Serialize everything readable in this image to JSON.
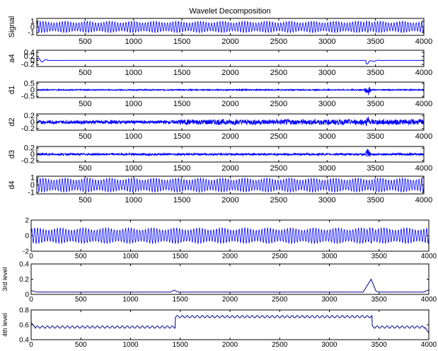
{
  "title": "Wavelet Decomposition",
  "colors": {
    "signal": "#0000ff",
    "envelope": "#00008b",
    "axis": "#000000"
  },
  "chart_data": [
    {
      "type": "line",
      "ylabel": "Signal",
      "xlim": [
        0,
        4000
      ],
      "ylim": [
        -1.5,
        1.5
      ],
      "yticks": [
        -1,
        0,
        1
      ],
      "xticks": [
        500,
        1000,
        1500,
        2000,
        2500,
        3000,
        3500,
        4000
      ],
      "series": [
        {
          "kind": "oscillation",
          "amplitude": 1.0,
          "cycles": 140,
          "transient_at": 3420
        }
      ]
    },
    {
      "type": "line",
      "ylabel": "a4",
      "xlim": [
        0,
        4000
      ],
      "ylim": [
        -0.3,
        0.5
      ],
      "yticks": [
        -0.2,
        0,
        0.2,
        0.4
      ],
      "xticks": [
        500,
        1000,
        1500,
        2000,
        2500,
        3000,
        3500,
        4000
      ],
      "series": [
        {
          "kind": "approximation",
          "baseline": 0,
          "start_bump": 0.15,
          "transient_at": 3420
        }
      ]
    },
    {
      "type": "line",
      "ylabel": "d1",
      "xlim": [
        0,
        4000
      ],
      "ylim": [
        -0.6,
        0.6
      ],
      "yticks": [
        -0.5,
        0,
        0.5
      ],
      "xticks": [
        500,
        1000,
        1500,
        2000,
        2500,
        3000,
        3500,
        4000
      ],
      "series": [
        {
          "kind": "detail",
          "amplitude": 0.04,
          "transient_at": 3420,
          "transient_amp": 0.5
        }
      ]
    },
    {
      "type": "line",
      "ylabel": "d2",
      "xlim": [
        0,
        4000
      ],
      "ylim": [
        -0.25,
        0.25
      ],
      "yticks": [
        -0.2,
        0,
        0.2
      ],
      "xticks": [
        500,
        1000,
        1500,
        2000,
        2500,
        3000,
        3500,
        4000
      ],
      "series": [
        {
          "kind": "detail",
          "amplitude": 0.05,
          "burst_from": 1450,
          "burst_amp": 0.08,
          "transient_at": 3420,
          "transient_amp": 0.22
        }
      ]
    },
    {
      "type": "line",
      "ylabel": "d3",
      "xlim": [
        0,
        4000
      ],
      "ylim": [
        -0.25,
        0.25
      ],
      "yticks": [
        -0.2,
        0,
        0.2
      ],
      "xticks": [
        500,
        1000,
        1500,
        2000,
        2500,
        3000,
        3500,
        4000
      ],
      "series": [
        {
          "kind": "detail",
          "amplitude": 0.03,
          "transient_at": 3420,
          "transient_amp": 0.2
        }
      ]
    },
    {
      "type": "line",
      "ylabel": "d4",
      "xlim": [
        0,
        4000
      ],
      "ylim": [
        -1.2,
        1.2
      ],
      "yticks": [
        -1,
        0,
        1
      ],
      "xticks": [
        500,
        1000,
        1500,
        2000,
        2500,
        3000,
        3500,
        4000
      ],
      "series": [
        {
          "kind": "oscillation",
          "amplitude": 0.95,
          "cycles": 140
        }
      ]
    },
    {
      "type": "line",
      "ylabel": "",
      "xlim": [
        0,
        4000
      ],
      "ylim": [
        -2,
        2
      ],
      "yticks": [
        -2,
        0,
        2
      ],
      "xticks": [
        0,
        500,
        1000,
        1500,
        2000,
        2500,
        3000,
        3500,
        4000
      ],
      "series": [
        {
          "kind": "oscillation",
          "amplitude": 1.0,
          "cycles": 140,
          "transient_at": 3420
        }
      ]
    },
    {
      "type": "line",
      "ylabel": "3rd level",
      "xlim": [
        0,
        4000
      ],
      "ylim": [
        0,
        0.4
      ],
      "yticks": [
        0,
        0.2,
        0.4
      ],
      "xticks": [
        0,
        500,
        1000,
        1500,
        2000,
        2500,
        3000,
        3500,
        4000
      ],
      "series": [
        {
          "kind": "envelope",
          "points": [
            [
              0,
              0.05
            ],
            [
              60,
              0.03
            ],
            [
              1400,
              0.03
            ],
            [
              1440,
              0.055
            ],
            [
              1480,
              0.03
            ],
            [
              3340,
              0.03
            ],
            [
              3420,
              0.2
            ],
            [
              3470,
              0.04
            ],
            [
              3520,
              0.03
            ],
            [
              3950,
              0.03
            ],
            [
              4000,
              0.06
            ]
          ]
        }
      ]
    },
    {
      "type": "line",
      "ylabel": "4th level",
      "xlim": [
        0,
        4000
      ],
      "ylim": [
        0.4,
        0.8
      ],
      "yticks": [
        0.4,
        0.6,
        0.8
      ],
      "xticks": [
        0,
        500,
        1000,
        1500,
        2000,
        2500,
        3000,
        3500,
        4000
      ],
      "series": [
        {
          "kind": "steps",
          "segments": [
            [
              0,
              1450,
              0.57
            ],
            [
              1450,
              3430,
              0.71
            ],
            [
              3430,
              4000,
              0.57
            ]
          ],
          "ripple": 0.015,
          "start": 0.63,
          "end_drop": 0.49
        }
      ]
    }
  ]
}
